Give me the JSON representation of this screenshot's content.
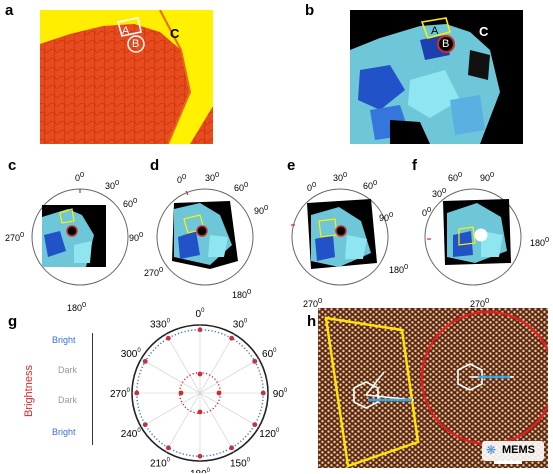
{
  "panels": {
    "a": {
      "label": "a",
      "regions": {
        "A": "A",
        "B": "B",
        "C": "C"
      }
    },
    "b": {
      "label": "b",
      "regions": {
        "A": "A",
        "B": "B",
        "C": "C"
      }
    },
    "c": {
      "label": "c",
      "ticks": [
        "0",
        "30",
        "60",
        "90",
        "180",
        "270"
      ]
    },
    "d": {
      "label": "d",
      "ticks": [
        "0",
        "30",
        "60",
        "90",
        "180",
        "270"
      ]
    },
    "e": {
      "label": "e",
      "ticks": [
        "0",
        "30",
        "60",
        "90",
        "180",
        "270"
      ]
    },
    "f": {
      "label": "f",
      "ticks": [
        "0",
        "30",
        "60",
        "90",
        "180",
        "270"
      ]
    },
    "g": {
      "label": "g"
    },
    "h": {
      "label": "h"
    }
  },
  "degree_symbol": "0",
  "watermark": "MEMS",
  "chart_data": {
    "type": "polar",
    "ylabel": "Brightness",
    "brightness_levels": [
      "Bright",
      "Dark",
      "Dark",
      "Bright"
    ],
    "angle_labels": [
      "0",
      "30",
      "60",
      "90",
      "120",
      "150",
      "180",
      "210",
      "240",
      "270",
      "300",
      "330"
    ],
    "series": [
      {
        "name": "",
        "color": "#d42a2a",
        "style": "markers",
        "angles": [
          0,
          30,
          60,
          90,
          120,
          150,
          180,
          210,
          240,
          270,
          300,
          330
        ],
        "values": [
          1,
          1,
          1,
          1,
          1,
          1,
          1,
          1,
          1,
          1,
          1,
          1
        ]
      },
      {
        "name": "",
        "color": "#d42a2a",
        "style": "markers",
        "angles": [
          0,
          90,
          180,
          270
        ],
        "values": [
          0.3,
          0.3,
          0.3,
          0.3
        ]
      },
      {
        "name": "",
        "color": "#3a6fd0",
        "style": "dotted-circle",
        "value": 0.93
      },
      {
        "name": "",
        "color": "#d42a2a",
        "style": "dotted-circle",
        "value": 0.3
      }
    ]
  }
}
